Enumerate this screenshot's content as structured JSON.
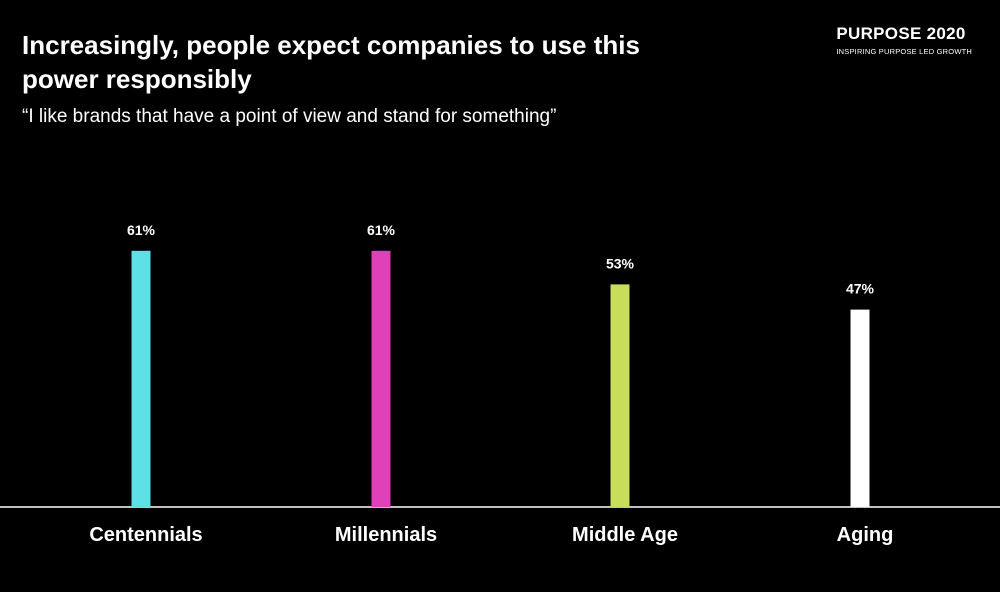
{
  "header": {
    "title": "Increasingly, people expect companies to use this power responsibly",
    "subtitle": "“I like brands that have a point of view and stand for something”"
  },
  "brand": {
    "name": "PURPOSE 2020",
    "tagline": "INSPIRING PURPOSE LED GROWTH"
  },
  "chart_data": {
    "type": "bar",
    "categories": [
      "Centennials",
      "Millennials",
      "Middle Age",
      "Aging"
    ],
    "values": [
      61,
      61,
      53,
      47
    ],
    "value_labels": [
      "61%",
      "61%",
      "53%",
      "47%"
    ],
    "colors": [
      "#5ce1e6",
      "#e040b8",
      "#c8de5a",
      "#ffffff"
    ],
    "ylim": [
      0,
      100
    ],
    "grid": false,
    "legend": "none"
  }
}
